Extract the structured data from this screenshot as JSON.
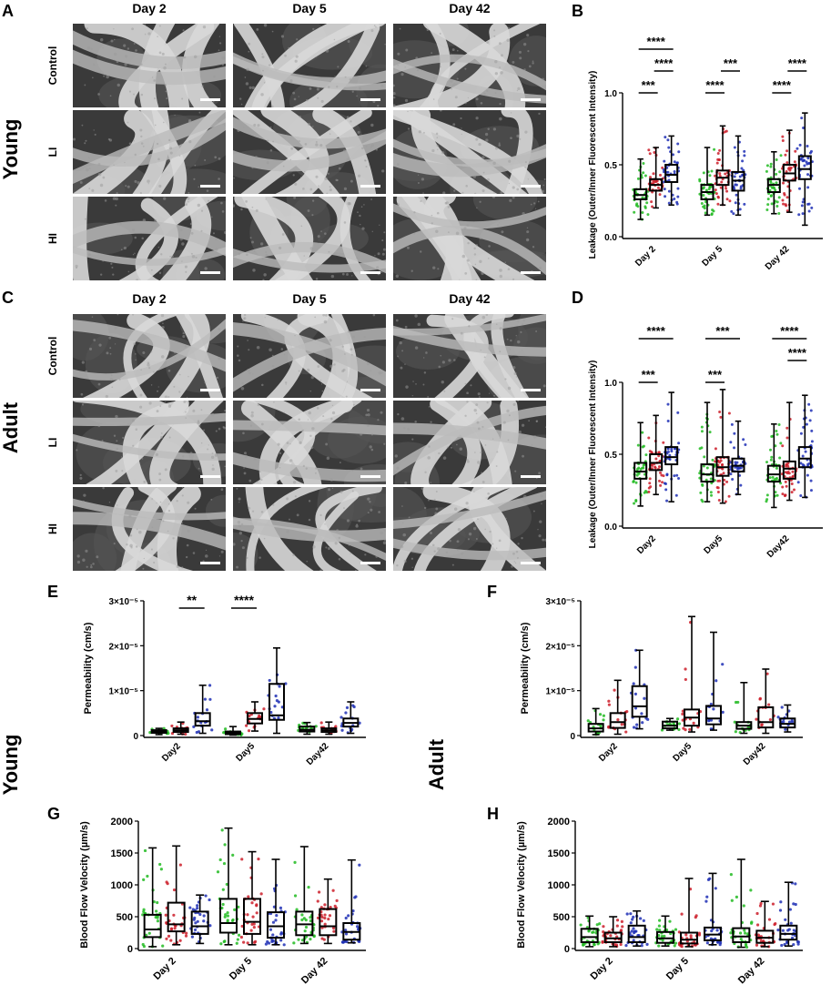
{
  "panel_letters": {
    "A": "A",
    "B": "B",
    "C": "C",
    "D": "D",
    "E": "E",
    "F": "F",
    "G": "G",
    "H": "H"
  },
  "group_labels": {
    "young_top": "Young",
    "adult_mid": "Adult",
    "young_bottom": "Young",
    "adult_bottom": "Adult"
  },
  "image_grid": {
    "day_headers": [
      "Day 2",
      "Day 5",
      "Day 42"
    ],
    "row_labels": [
      "Control",
      "LI",
      "HI"
    ]
  },
  "colors": {
    "control": "#22bb22",
    "li": "#cc1f2a",
    "hi": "#1f2fb5"
  },
  "chart_data": [
    {
      "panel": "B",
      "type": "box",
      "ylabel": "Leakage (Outer/Inner Fluorescent Intensity)",
      "ylim": [
        0,
        1.0
      ],
      "yticks": [
        "0.0",
        "0.5",
        "1.0"
      ],
      "ytick_values": [
        0,
        0.5,
        1.0
      ],
      "scientific": false,
      "categories": [
        "Day 2",
        "Day 5",
        "Day 42"
      ],
      "boxes": [
        [
          {
            "min": 0.12,
            "q1": 0.26,
            "med": 0.29,
            "q3": 0.33,
            "max": 0.54
          },
          {
            "min": 0.2,
            "q1": 0.32,
            "med": 0.36,
            "q3": 0.4,
            "max": 0.62
          },
          {
            "min": 0.22,
            "q1": 0.38,
            "med": 0.43,
            "q3": 0.5,
            "max": 0.7
          }
        ],
        [
          {
            "min": 0.15,
            "q1": 0.26,
            "med": 0.31,
            "q3": 0.36,
            "max": 0.62
          },
          {
            "min": 0.22,
            "q1": 0.36,
            "med": 0.41,
            "q3": 0.46,
            "max": 0.77
          },
          {
            "min": 0.15,
            "q1": 0.32,
            "med": 0.39,
            "q3": 0.45,
            "max": 0.7
          }
        ],
        [
          {
            "min": 0.16,
            "q1": 0.31,
            "med": 0.36,
            "q3": 0.4,
            "max": 0.59
          },
          {
            "min": 0.17,
            "q1": 0.39,
            "med": 0.44,
            "q3": 0.5,
            "max": 0.74
          },
          {
            "min": 0.08,
            "q1": 0.4,
            "med": 0.47,
            "q3": 0.56,
            "max": 0.86
          }
        ]
      ],
      "sig": [
        {
          "group": 0,
          "from": 0,
          "to": 1,
          "level": 0,
          "label": "***"
        },
        {
          "group": 0,
          "from": 1,
          "to": 2,
          "level": 1,
          "label": "****"
        },
        {
          "group": 0,
          "from": 0,
          "to": 2,
          "level": 2,
          "label": "****"
        },
        {
          "group": 1,
          "from": 0,
          "to": 1,
          "level": 0,
          "label": "****"
        },
        {
          "group": 1,
          "from": 1,
          "to": 2,
          "level": 1,
          "label": "***"
        },
        {
          "group": 2,
          "from": 0,
          "to": 1,
          "level": 0,
          "label": "****"
        },
        {
          "group": 2,
          "from": 1,
          "to": 2,
          "level": 1,
          "label": "****"
        }
      ]
    },
    {
      "panel": "D",
      "type": "box",
      "ylabel": "Leakage (Outer/Inner Fluorescent Intensity)",
      "ylim": [
        0,
        1.0
      ],
      "yticks": [
        "0.0",
        "0.5",
        "1.0"
      ],
      "ytick_values": [
        0,
        0.5,
        1.0
      ],
      "scientific": false,
      "categories": [
        "Day2",
        "Day5",
        "Day42"
      ],
      "boxes": [
        [
          {
            "min": 0.14,
            "q1": 0.33,
            "med": 0.38,
            "q3": 0.44,
            "max": 0.72
          },
          {
            "min": 0.22,
            "q1": 0.39,
            "med": 0.44,
            "q3": 0.5,
            "max": 0.77
          },
          {
            "min": 0.17,
            "q1": 0.43,
            "med": 0.48,
            "q3": 0.55,
            "max": 0.93
          }
        ],
        [
          {
            "min": 0.17,
            "q1": 0.31,
            "med": 0.36,
            "q3": 0.43,
            "max": 0.86
          },
          {
            "min": 0.16,
            "q1": 0.35,
            "med": 0.41,
            "q3": 0.48,
            "max": 0.95
          },
          {
            "min": 0.22,
            "q1": 0.38,
            "med": 0.42,
            "q3": 0.47,
            "max": 0.73
          }
        ],
        [
          {
            "min": 0.13,
            "q1": 0.31,
            "med": 0.36,
            "q3": 0.42,
            "max": 0.71
          },
          {
            "min": 0.18,
            "q1": 0.33,
            "med": 0.4,
            "q3": 0.45,
            "max": 0.86
          },
          {
            "min": 0.2,
            "q1": 0.41,
            "med": 0.47,
            "q3": 0.55,
            "max": 0.91
          }
        ]
      ],
      "sig": [
        {
          "group": 0,
          "from": 0,
          "to": 1,
          "level": 0,
          "label": "***"
        },
        {
          "group": 0,
          "from": 0,
          "to": 2,
          "level": 2,
          "label": "****"
        },
        {
          "group": 1,
          "from": 0,
          "to": 1,
          "level": 0,
          "label": "***"
        },
        {
          "group": 1,
          "from": 0,
          "to": 2,
          "level": 2,
          "label": "***"
        },
        {
          "group": 2,
          "from": 1,
          "to": 2,
          "level": 1,
          "label": "****"
        },
        {
          "group": 2,
          "from": 0,
          "to": 2,
          "level": 2,
          "label": "****"
        }
      ]
    },
    {
      "panel": "E",
      "type": "box",
      "ylabel": "Permeability (cm/s)",
      "ylim": [
        0,
        3e-05
      ],
      "yticks": [
        "0",
        "1×10⁻⁵",
        "2×10⁻⁵",
        "3×10⁻⁵"
      ],
      "ytick_values": [
        0,
        1e-05,
        2e-05,
        3e-05
      ],
      "scientific": true,
      "categories": [
        "Day2",
        "Day5",
        "Day42"
      ],
      "boxes": [
        [
          {
            "min": 2e-07,
            "q1": 6e-07,
            "med": 9e-07,
            "q3": 1.2e-06,
            "max": 1.6e-06
          },
          {
            "min": 3e-07,
            "q1": 8e-07,
            "med": 1.2e-06,
            "q3": 1.6e-06,
            "max": 3e-06
          },
          {
            "min": 5e-07,
            "q1": 2.2e-06,
            "med": 3.2e-06,
            "q3": 5e-06,
            "max": 1.12e-05
          }
        ],
        [
          {
            "min": 1e-07,
            "q1": 3e-07,
            "med": 6e-07,
            "q3": 9e-07,
            "max": 2e-06
          },
          {
            "min": 1e-06,
            "q1": 2.7e-06,
            "med": 3.7e-06,
            "q3": 5e-06,
            "max": 7.5e-06
          },
          {
            "min": 5e-07,
            "q1": 3.5e-06,
            "med": 4.5e-06,
            "q3": 1.15e-05,
            "max": 1.95e-05
          }
        ],
        [
          {
            "min": 3e-07,
            "q1": 9e-07,
            "med": 1.3e-06,
            "q3": 2e-06,
            "max": 2.9e-06
          },
          {
            "min": 3e-07,
            "q1": 8e-07,
            "med": 1.2e-06,
            "q3": 1.6e-06,
            "max": 3e-06
          },
          {
            "min": 5e-07,
            "q1": 2e-06,
            "med": 2.8e-06,
            "q3": 3.8e-06,
            "max": 7.5e-06
          }
        ]
      ],
      "sig": [
        {
          "group": 0,
          "from": 1,
          "to": 2,
          "level": 0,
          "label": "**"
        },
        {
          "group": 0,
          "from": 0,
          "to": 2,
          "level": 2,
          "label": "****"
        },
        {
          "group": 1,
          "from": 0,
          "to": 1,
          "level": 0,
          "label": "****"
        },
        {
          "group": 1,
          "from": 0,
          "to": 2,
          "level": 2,
          "label": "****"
        }
      ]
    },
    {
      "panel": "F",
      "type": "box",
      "ylabel": "Permeability (cm/s)",
      "ylim": [
        0,
        3e-05
      ],
      "yticks": [
        "0",
        "1×10⁻⁵",
        "2×10⁻⁵",
        "3×10⁻⁵"
      ],
      "ytick_values": [
        0,
        1e-05,
        2e-05,
        3e-05
      ],
      "scientific": true,
      "categories": [
        "Day2",
        "Day5",
        "Day42"
      ],
      "boxes": [
        [
          {
            "min": 2e-07,
            "q1": 9e-07,
            "med": 1.6e-06,
            "q3": 2.6e-06,
            "max": 6e-06
          },
          {
            "min": 3e-07,
            "q1": 1.7e-06,
            "med": 3e-06,
            "q3": 5e-06,
            "max": 1.23e-05
          },
          {
            "min": 1.5e-06,
            "q1": 4.2e-06,
            "med": 6.5e-06,
            "q3": 1.1e-05,
            "max": 1.9e-05
          }
        ],
        [
          {
            "min": 1.2e-06,
            "q1": 1.6e-06,
            "med": 2.2e-06,
            "q3": 3.1e-06,
            "max": 3.8e-06
          },
          {
            "min": 8e-07,
            "q1": 2.2e-06,
            "med": 4e-06,
            "q3": 5.8e-06,
            "max": 2.65e-05
          },
          {
            "min": 1.2e-06,
            "q1": 2.5e-06,
            "med": 3.8e-06,
            "q3": 6.6e-06,
            "max": 2.3e-05
          }
        ],
        [
          {
            "min": 5e-07,
            "q1": 1.5e-06,
            "med": 2.2e-06,
            "q3": 3e-06,
            "max": 1.18e-05
          },
          {
            "min": 5e-07,
            "q1": 1.8e-06,
            "med": 3e-06,
            "q3": 6.3e-06,
            "max": 1.48e-05
          },
          {
            "min": 8e-07,
            "q1": 1.8e-06,
            "med": 2.6e-06,
            "q3": 3.8e-06,
            "max": 6.8e-06
          }
        ]
      ],
      "sig": [
        {
          "group": 0,
          "from": 0,
          "to": 2,
          "level": 2,
          "label": "***"
        }
      ]
    },
    {
      "panel": "G",
      "type": "box",
      "ylabel": "Blood Flow Velocity (µm/s)",
      "ylim": [
        0,
        2000
      ],
      "yticks": [
        "0",
        "500",
        "1000",
        "1500",
        "2000"
      ],
      "ytick_values": [
        0,
        500,
        1000,
        1500,
        2000
      ],
      "scientific": false,
      "categories": [
        "Day 2",
        "Day 5",
        "Day 42"
      ],
      "boxes": [
        [
          {
            "min": 30,
            "q1": 180,
            "med": 300,
            "q3": 530,
            "max": 1580
          },
          {
            "min": 60,
            "q1": 270,
            "med": 380,
            "q3": 720,
            "max": 1610
          },
          {
            "min": 80,
            "q1": 230,
            "med": 350,
            "q3": 580,
            "max": 840
          }
        ],
        [
          {
            "min": 60,
            "q1": 250,
            "med": 400,
            "q3": 780,
            "max": 1890
          },
          {
            "min": 60,
            "q1": 230,
            "med": 420,
            "q3": 780,
            "max": 1520
          },
          {
            "min": 60,
            "q1": 170,
            "med": 350,
            "q3": 570,
            "max": 1400
          }
        ],
        [
          {
            "min": 80,
            "q1": 210,
            "med": 380,
            "q3": 580,
            "max": 1600
          },
          {
            "min": 80,
            "q1": 210,
            "med": 350,
            "q3": 620,
            "max": 1090
          },
          {
            "min": 90,
            "q1": 140,
            "med": 260,
            "q3": 400,
            "max": 1390
          }
        ]
      ],
      "sig": []
    },
    {
      "panel": "H",
      "type": "box",
      "ylabel": "Blood Flow Velocity (µm/s)",
      "ylim": [
        0,
        2000
      ],
      "yticks": [
        "0",
        "500",
        "1000",
        "1500",
        "2000"
      ],
      "ytick_values": [
        0,
        500,
        1000,
        1500,
        2000
      ],
      "scientific": false,
      "categories": [
        "Day 2",
        "Day 5",
        "Day 42"
      ],
      "boxes": [
        [
          {
            "min": 30,
            "q1": 100,
            "med": 180,
            "q3": 310,
            "max": 510
          },
          {
            "min": 30,
            "q1": 100,
            "med": 160,
            "q3": 250,
            "max": 500
          },
          {
            "min": 40,
            "q1": 100,
            "med": 180,
            "q3": 360,
            "max": 590
          }
        ],
        [
          {
            "min": 40,
            "q1": 90,
            "med": 160,
            "q3": 260,
            "max": 510
          },
          {
            "min": 30,
            "q1": 80,
            "med": 140,
            "q3": 250,
            "max": 1100
          },
          {
            "min": 60,
            "q1": 130,
            "med": 220,
            "q3": 330,
            "max": 1180
          }
        ],
        [
          {
            "min": 20,
            "q1": 100,
            "med": 190,
            "q3": 320,
            "max": 1400
          },
          {
            "min": 30,
            "q1": 90,
            "med": 170,
            "q3": 280,
            "max": 740
          },
          {
            "min": 40,
            "q1": 140,
            "med": 230,
            "q3": 360,
            "max": 1040
          }
        ]
      ],
      "sig": []
    }
  ]
}
